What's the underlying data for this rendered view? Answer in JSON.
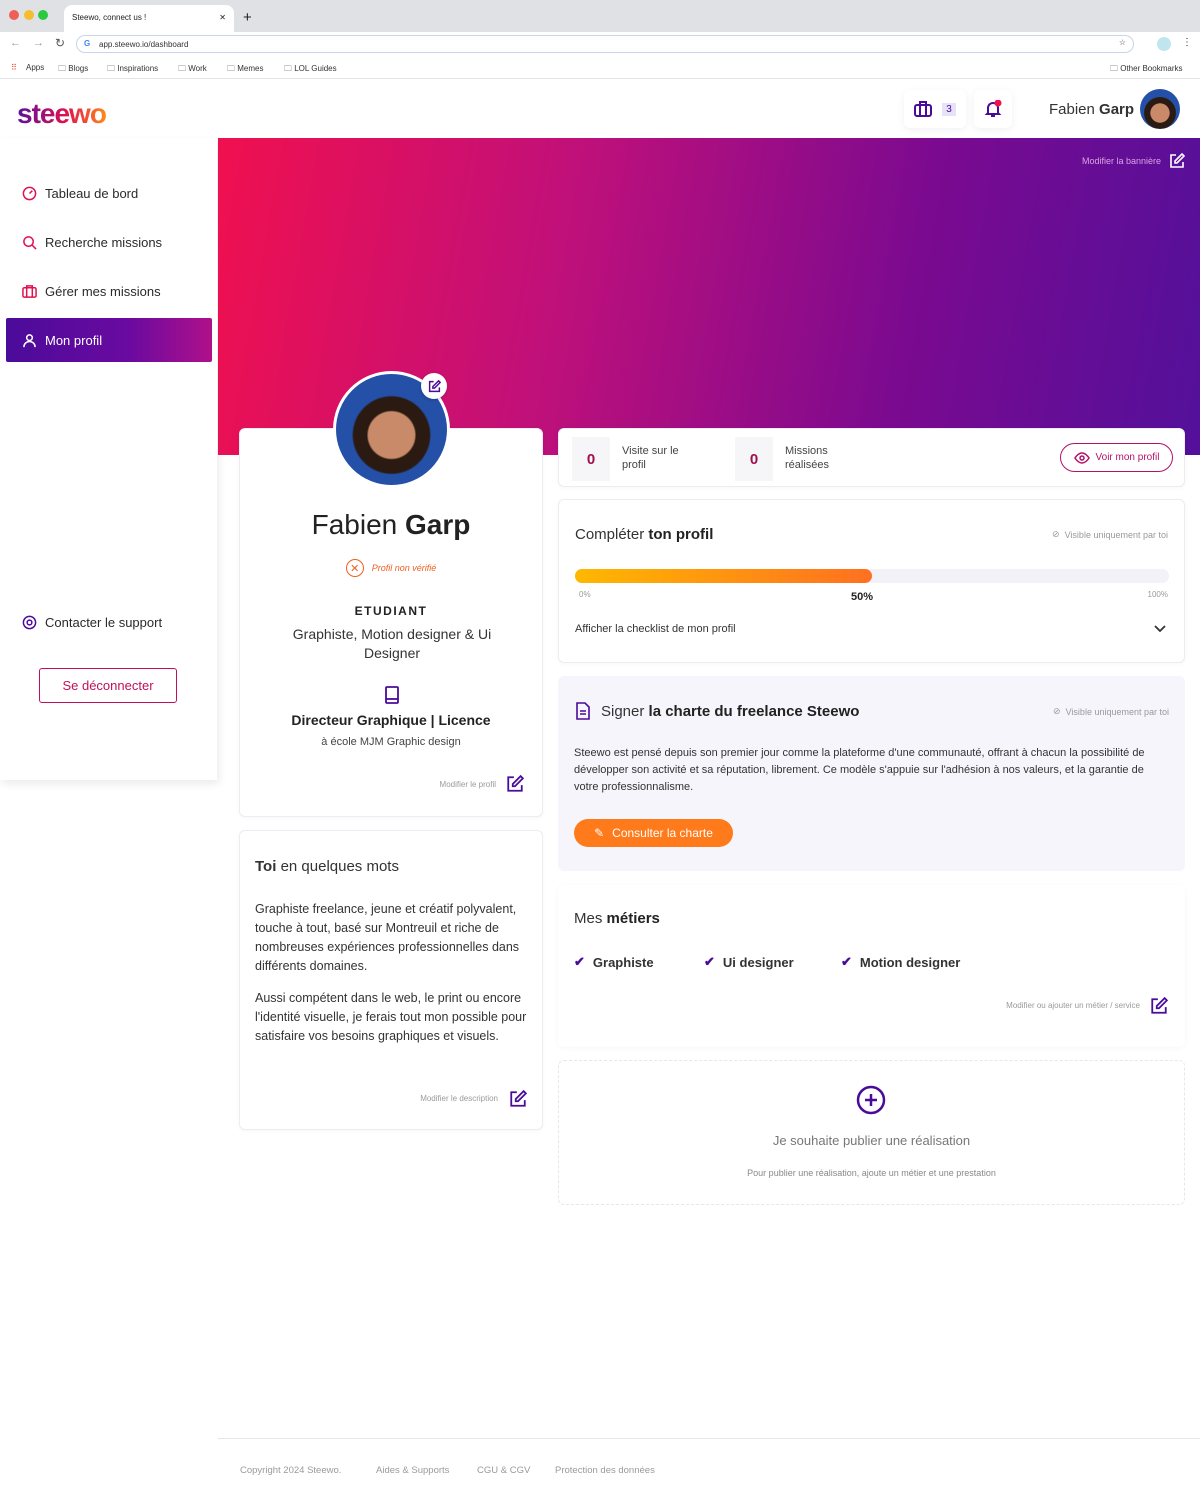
{
  "browser": {
    "tab_title": "Steewo, connect us !",
    "url": "app.steewo.io/dashboard",
    "bookmarks": [
      "Apps",
      "Blogs",
      "Inspirations",
      "Work",
      "Memes",
      "LOL Guides"
    ],
    "other_bookmarks": "Other Bookmarks"
  },
  "brand": {
    "logo": "steewo",
    "accent": "#4b0b9a",
    "pink": "#e0114f",
    "orange": "#ff7a1a"
  },
  "header": {
    "missions_count": "3",
    "user_first": "Fabien",
    "user_last": "Garp"
  },
  "sidebar": {
    "items": [
      {
        "label": "Tableau de bord",
        "icon": "dashboard-icon"
      },
      {
        "label": "Recherche missions",
        "icon": "search-icon"
      },
      {
        "label": "Gérer mes missions",
        "icon": "briefcase-icon"
      },
      {
        "label": "Mon profil",
        "icon": "user-icon",
        "active": true
      }
    ],
    "support": "Contacter le support",
    "logout": "Se déconnecter"
  },
  "banner": {
    "edit_label": "Modifier la bannière"
  },
  "profile": {
    "first": "Fabien",
    "last": "Garp",
    "status": "Profil non vérifié",
    "role": "ETUDIANT",
    "title": "Graphiste, Motion designer & Ui Designer",
    "degree": "Directeur Graphique | Licence",
    "school": "à école MJM Graphic design",
    "edit": "Modifier le profil"
  },
  "about": {
    "title_bold": "Toi",
    "title_rest": "en quelques mots",
    "p1": "Graphiste freelance, jeune et créatif polyvalent, touche à tout, basé sur Montreuil et riche de nombreuses expériences professionnelles dans différents domaines.",
    "p2": "Aussi compétent dans le web, le print ou encore l'identité visuelle, je ferais tout mon possible pour satisfaire vos besoins graphiques et visuels.",
    "edit": "Modifier le description"
  },
  "stats": {
    "visits": "0",
    "visits_label": "Visite sur le profil",
    "missions": "0",
    "missions_label": "Missions réalisées",
    "view_profile": "Voir mon profil"
  },
  "completion": {
    "title": "Compléter",
    "title_bold": "ton profil",
    "visibility": "Visible uniquement par toi",
    "progress": 50,
    "min": "0%",
    "value_label": "50%",
    "max": "100%",
    "checklist": "Afficher la checklist de mon profil"
  },
  "charte": {
    "title": "Signer",
    "title_bold": "la charte du freelance Steewo",
    "visibility": "Visible uniquement par toi",
    "body": "Steewo est pensé depuis son premier jour comme la plateforme d'une communauté, offrant à chacun la possibilité de développer son activité et sa réputation, librement. Ce modèle s'appuie sur l'adhésion à nos valeurs, et la garantie de votre professionnalisme.",
    "button": "Consulter la charte"
  },
  "metiers": {
    "title": "Mes",
    "title_bold": "métiers",
    "items": [
      "Graphiste",
      "Ui designer",
      "Motion designer"
    ],
    "edit": "Modifier ou ajouter un métier / service"
  },
  "realisation": {
    "title": "Je souhaite publier une réalisation",
    "hint": "Pour publier une réalisation, ajoute un métier et une prestation"
  },
  "footer": {
    "copyright": "Copyright 2024 Steewo.",
    "links": [
      "Aides & Supports",
      "CGU & CGV",
      "Protection des données"
    ]
  }
}
